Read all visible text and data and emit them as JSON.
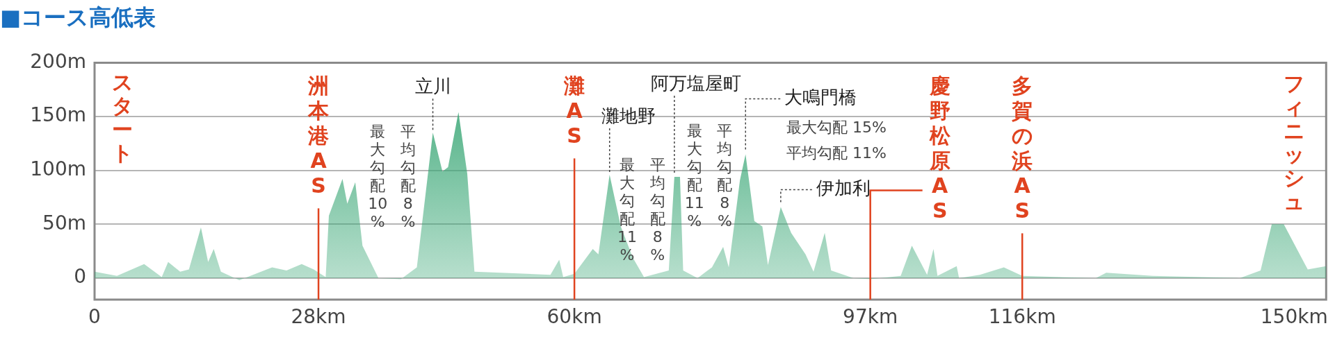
{
  "chart_data": {
    "type": "area",
    "title": "■コース高低表",
    "x": [
      0,
      2.8,
      6.2,
      8.4,
      9.2,
      10.7,
      11.8,
      13.3,
      14.2,
      14.9,
      15.8,
      18.1,
      22.2,
      24,
      25.9,
      27.4,
      28.9,
      29.3,
      31,
      31.6,
      32.6,
      33.5,
      35.5,
      38.3,
      40.3,
      42.3,
      43.5,
      44.2,
      45.5,
      46.6,
      47.5,
      57,
      58.1,
      58.6,
      60,
      62.3,
      63,
      64.4,
      65.8,
      67.3,
      68.7,
      71.8,
      72.5,
      73.2,
      73.6,
      75.4,
      77.2,
      78.6,
      79.3,
      80.7,
      81.4,
      82.5,
      83.5,
      84.2,
      85.8,
      87.1,
      88.9,
      89.9,
      91.3,
      92.1,
      94.9,
      97,
      100.8,
      102.2,
      104.1,
      104.9,
      105.4,
      107.8,
      108.1,
      110.7,
      113.7,
      116,
      125.2,
      126.5,
      132.3,
      143.2,
      145.8,
      147.2,
      148.7,
      151.2,
      151.7,
      154
    ],
    "series": [
      {
        "color": "#3aa776",
        "values": [
          6,
          2,
          13,
          1,
          15,
          6,
          8,
          47,
          15,
          27,
          6,
          -2,
          10,
          7,
          13,
          8,
          1,
          58,
          92,
          69,
          89,
          30,
          0,
          -1,
          10,
          135,
          99,
          103,
          154,
          97,
          6,
          3,
          17,
          1,
          4,
          27,
          22,
          96,
          48,
          19,
          1,
          7,
          94,
          94,
          7,
          0,
          10,
          29,
          10,
          91,
          115,
          53,
          48,
          12,
          66,
          42,
          22,
          6,
          42,
          7,
          0,
          -1,
          2,
          30,
          3,
          27,
          2,
          11,
          0,
          3,
          10,
          2,
          0,
          5,
          2,
          0,
          7,
          50,
          50,
          15,
          8,
          11
        ]
      }
    ],
    "xlim": [
      0,
      154
    ],
    "xticks": [
      0,
      {
        "value": 28,
        "label": "28km"
      },
      {
        "value": 60,
        "label": "60km"
      },
      {
        "value": 97,
        "label": "97km"
      },
      {
        "value": 116,
        "label": "116km"
      },
      {
        "value": 150,
        "label": "150km"
      }
    ],
    "ylim": [
      -20,
      200
    ],
    "yticks": [
      0,
      {
        "value": 50,
        "label": "50m"
      },
      {
        "value": 100,
        "label": "100m"
      },
      {
        "value": 150,
        "label": "150m"
      },
      {
        "value": 200,
        "label": "200m"
      }
    ],
    "grid": "y",
    "legend": false,
    "ref_lines": [
      {
        "axis": "x",
        "value": 28,
        "label": "洲本港AS",
        "color": "#e0431f"
      },
      {
        "axis": "x",
        "value": 60,
        "label": "灘AS",
        "color": "#e0431f"
      },
      {
        "axis": "x",
        "value": 97,
        "label": "慶野松原AS",
        "color": "#e0431f"
      },
      {
        "axis": "x",
        "value": 116,
        "label": "多賀の浜AS",
        "color": "#e0431f"
      }
    ],
    "annotations": [
      "スタート",
      "フィニッシュ",
      {
        "text": "立川",
        "x": 42.3,
        "y": 135
      },
      "最大勾配10%",
      "平均勾配8%",
      {
        "text": "灘地野",
        "x": 64.4,
        "y": 96
      },
      "最大勾配11%",
      "平均勾配8%",
      {
        "text": "阿万塩屋町",
        "x": 72.5,
        "y": 94
      },
      "最大勾配11%",
      "平均勾配8%",
      {
        "text": "大鳴門橋",
        "x": 81.4,
        "y": 115
      },
      "最大勾配 15%",
      "平均勾配 11%",
      {
        "text": "伊加利",
        "x": 85.8,
        "y": 66
      }
    ]
  }
}
